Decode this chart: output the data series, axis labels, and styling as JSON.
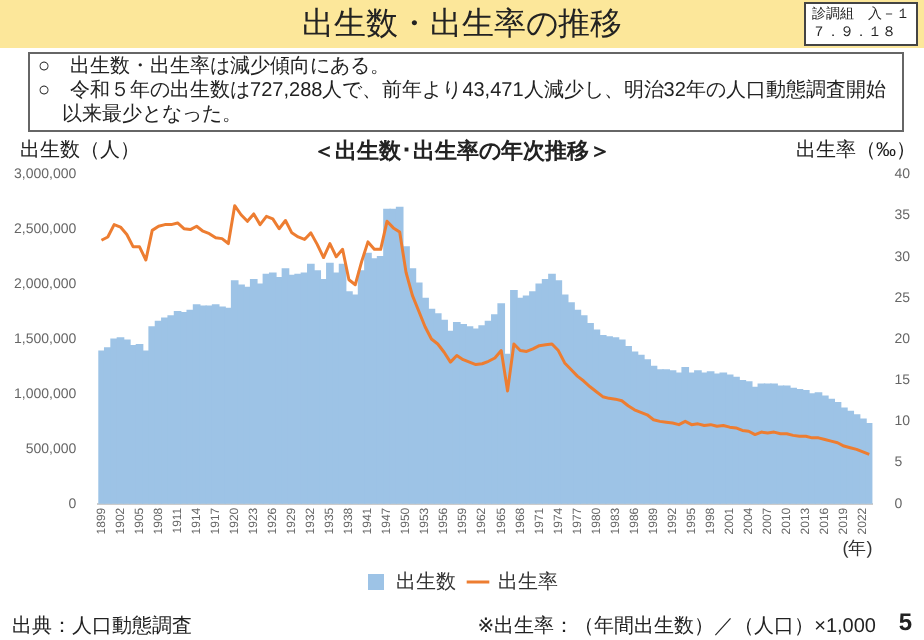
{
  "chart_data": {
    "type": "bar",
    "title": "出生数・出生率の推移",
    "subtitle": "＜出生数･出生率の年次推移＞",
    "ylabel": "出生数（人）",
    "y2label": "出生率（‰）",
    "xlabel": "(年)",
    "annotations": [
      "診調組　入－１",
      "７．９．１８",
      "○　出生数・出生率は減少傾向にある。",
      "○　令和５年の出生数は727,288人で、前年より43,471人減少し、明治32年の人口動態調査開始以来最少となった。",
      "出典：人口動態調査",
      "※出生率：（年間出生数）／（人口）×1,000",
      "5"
    ],
    "categories": [
      "1899",
      null,
      null,
      "1902",
      null,
      null,
      "1905",
      null,
      null,
      "1908",
      null,
      null,
      "1911",
      null,
      null,
      "1914",
      null,
      null,
      "1917",
      null,
      null,
      "1920",
      null,
      null,
      "1923",
      null,
      null,
      "1926",
      null,
      null,
      "1929",
      null,
      null,
      "1932",
      null,
      null,
      "1935",
      null,
      null,
      "1938",
      null,
      null,
      "1941",
      null,
      null,
      "1947",
      null,
      null,
      "1950",
      null,
      null,
      "1953",
      null,
      null,
      "1956",
      null,
      null,
      "1959",
      null,
      null,
      "1962",
      null,
      null,
      "1965",
      null,
      null,
      "1968",
      null,
      null,
      "1971",
      null,
      null,
      "1974",
      null,
      null,
      "1977",
      null,
      null,
      "1980",
      null,
      null,
      "1983",
      null,
      null,
      "1986",
      null,
      null,
      "1989",
      null,
      null,
      "1992",
      null,
      null,
      "1995",
      null,
      null,
      "1998",
      null,
      null,
      "2001",
      null,
      null,
      "2004",
      null,
      null,
      "2007",
      null,
      null,
      "2010",
      null,
      null,
      "2013",
      null,
      null,
      "2016",
      null,
      null,
      "2019",
      null,
      null,
      "2022",
      null
    ],
    "series": [
      {
        "name": "出生数",
        "color": "#9dc3e6",
        "values": [
          1390000,
          1420000,
          1500000,
          1510000,
          1490000,
          1440000,
          1450000,
          1390000,
          1610000,
          1660000,
          1690000,
          1710000,
          1750000,
          1740000,
          1760000,
          1810000,
          1800000,
          1800000,
          1810000,
          1790000,
          1780000,
          2030000,
          1990000,
          1970000,
          2040000,
          2000000,
          2090000,
          2100000,
          2060000,
          2140000,
          2080000,
          2090000,
          2100000,
          2180000,
          2120000,
          2040000,
          2190000,
          2100000,
          2180000,
          1930000,
          1900000,
          2120000,
          2280000,
          2230000,
          2250000,
          2680000,
          2680000,
          2700000,
          2340000,
          2140000,
          2010000,
          1870000,
          1770000,
          1730000,
          1670000,
          1570000,
          1650000,
          1630000,
          1610000,
          1590000,
          1620000,
          1660000,
          1720000,
          1820000,
          1360000,
          1940000,
          1870000,
          1890000,
          1930000,
          2000000,
          2040000,
          2090000,
          2030000,
          1900000,
          1830000,
          1760000,
          1710000,
          1640000,
          1580000,
          1530000,
          1520000,
          1510000,
          1490000,
          1430000,
          1380000,
          1350000,
          1310000,
          1250000,
          1220000,
          1220000,
          1210000,
          1190000,
          1240000,
          1190000,
          1210000,
          1190000,
          1200000,
          1180000,
          1190000,
          1170000,
          1150000,
          1120000,
          1110000,
          1060000,
          1090000,
          1090000,
          1090000,
          1070000,
          1070000,
          1050000,
          1040000,
          1030000,
          1000000,
          1010000,
          980000,
          950000,
          920000,
          870000,
          840000,
          810000,
          770000,
          730000
        ]
      },
      {
        "name": "出生率",
        "type": "line",
        "axis": "y2",
        "color": "#ed7d31",
        "values": [
          32.0,
          32.4,
          33.9,
          33.6,
          32.7,
          31.2,
          31.2,
          29.6,
          33.2,
          33.7,
          33.9,
          33.9,
          34.1,
          33.4,
          33.3,
          33.7,
          33.1,
          32.8,
          32.3,
          32.2,
          31.6,
          36.2,
          35.1,
          34.3,
          35.2,
          33.9,
          34.9,
          34.6,
          33.4,
          34.4,
          32.9,
          32.4,
          32.1,
          32.9,
          31.5,
          29.9,
          31.6,
          30.0,
          30.9,
          27.2,
          26.6,
          29.4,
          31.8,
          30.9,
          30.9,
          34.3,
          33.5,
          33.0,
          28.1,
          25.3,
          23.4,
          21.5,
          20.0,
          19.4,
          18.4,
          17.2,
          18.0,
          17.5,
          17.2,
          16.9,
          17.0,
          17.3,
          17.7,
          18.6,
          13.7,
          19.4,
          18.6,
          18.5,
          18.8,
          19.2,
          19.3,
          19.4,
          18.6,
          17.1,
          16.3,
          15.5,
          14.9,
          14.2,
          13.6,
          13.0,
          12.8,
          12.7,
          12.5,
          11.9,
          11.4,
          11.1,
          10.8,
          10.2,
          10.0,
          9.9,
          9.8,
          9.6,
          10.0,
          9.6,
          9.7,
          9.5,
          9.6,
          9.4,
          9.5,
          9.3,
          9.2,
          8.9,
          8.8,
          8.4,
          8.7,
          8.6,
          8.7,
          8.5,
          8.5,
          8.3,
          8.2,
          8.2,
          8.0,
          8.0,
          7.8,
          7.6,
          7.4,
          7.0,
          6.8,
          6.6,
          6.3,
          6.0
        ]
      }
    ],
    "ylim": [
      0,
      3000000
    ],
    "yticks": [
      0,
      {
        "value": 500000,
        "label": "500,000"
      },
      {
        "value": 1000000,
        "label": "1,000,000"
      },
      {
        "value": 1500000,
        "label": "1,500,000"
      },
      {
        "value": 2000000,
        "label": "2,000,000"
      },
      {
        "value": 2500000,
        "label": "2,500,000"
      },
      {
        "value": 3000000,
        "label": "3,000,000"
      }
    ],
    "y2lim": [
      0,
      40
    ],
    "y2ticks": [
      0,
      5,
      10,
      15,
      20,
      25,
      30,
      35,
      40
    ],
    "grid": false,
    "legend": "bottom",
    "marker": "none",
    "line_style": "solid"
  }
}
